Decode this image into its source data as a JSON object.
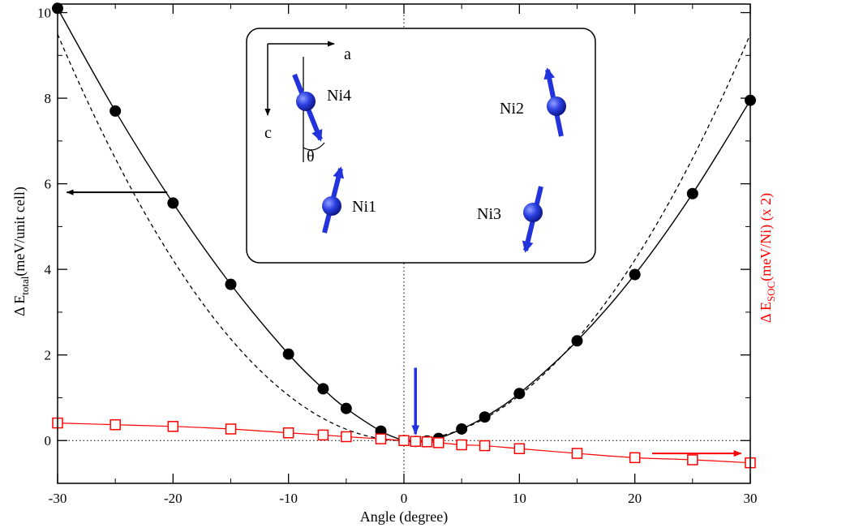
{
  "chart_data": {
    "type": "line",
    "xlabel": "Angle (degree)",
    "ylabel_left": {
      "symbol": "Δ E",
      "sub": "total",
      "rest": "(meV/unit cell)"
    },
    "ylabel_right": {
      "symbol": "Δ E",
      "sub": "SOC",
      "rest": "(meV/Ni) (x 2)"
    },
    "xlim": [
      -30,
      30
    ],
    "ylim": [
      -1,
      10.2
    ],
    "x_ticks": [
      -30,
      -20,
      -10,
      0,
      10,
      20,
      30
    ],
    "x_tick_labels": [
      "-30",
      "-20",
      "-10",
      "0",
      "10",
      "20",
      "30"
    ],
    "y_ticks": [
      0,
      2,
      4,
      6,
      8,
      10
    ],
    "y_tick_labels": [
      "0",
      "2",
      "4",
      "6",
      "8",
      "10"
    ],
    "series": [
      {
        "name": "ΔE_total",
        "style": "filled-circle-line",
        "color": "#000000",
        "x": [
          -30,
          -25,
          -20,
          -15,
          -10,
          -7,
          -5,
          -2,
          0,
          1,
          2,
          3,
          5,
          7,
          10,
          15,
          20,
          25,
          30
        ],
        "y": [
          10.1,
          7.7,
          5.55,
          3.65,
          2.02,
          1.21,
          0.75,
          0.22,
          0.0,
          -0.02,
          -0.01,
          0.05,
          0.27,
          0.55,
          1.1,
          2.33,
          3.88,
          5.77,
          7.95
        ]
      },
      {
        "name": "ΔE_SOC (x 2)",
        "style": "open-square-line",
        "color": "#ff0000",
        "x": [
          -30,
          -25,
          -20,
          -15,
          -10,
          -7,
          -5,
          -2,
          0,
          1,
          2,
          3,
          5,
          7,
          10,
          15,
          20,
          25,
          30
        ],
        "y": [
          0.41,
          0.37,
          0.33,
          0.27,
          0.18,
          0.13,
          0.09,
          0.04,
          0.0,
          -0.02,
          -0.03,
          -0.05,
          -0.1,
          -0.12,
          -0.19,
          -0.3,
          -0.4,
          -0.45,
          -0.52
        ]
      },
      {
        "name": "quadratic fit",
        "style": "dashed-line",
        "color": "#000000",
        "coefficient": 0.01055,
        "x_range": [
          -30,
          30
        ]
      }
    ],
    "reference_lines": {
      "horizontal_y": 0,
      "vertical_x": 0,
      "style": "dotted"
    },
    "annotations": {
      "left_arrow": {
        "x_from": -20.5,
        "x_to": -29.2,
        "y": 5.8,
        "color": "#000000"
      },
      "right_arrow": {
        "x_from": 21.5,
        "x_to": 29.2,
        "y": -0.3,
        "color": "#ff0000"
      },
      "minimum_marker": {
        "x": 1,
        "y_from": 1.7,
        "y_to": 0.15,
        "color": "#2233dd"
      }
    },
    "inset": {
      "axis_a": "a",
      "axis_c": "c",
      "angle_symbol": "θ",
      "spin_color": "#2233dd",
      "atoms": [
        {
          "label": "Ni4",
          "spin": "down"
        },
        {
          "label": "Ni1",
          "spin": "up"
        },
        {
          "label": "Ni2",
          "spin": "up"
        },
        {
          "label": "Ni3",
          "spin": "down"
        }
      ]
    }
  }
}
